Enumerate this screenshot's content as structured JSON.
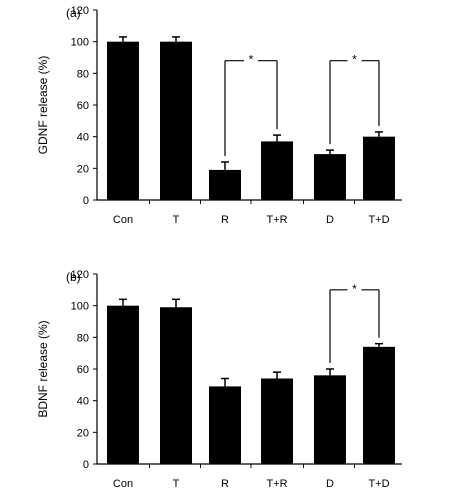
{
  "chart_data": [
    {
      "type": "bar",
      "panel_label": "(a)",
      "ylabel": "GDNF release  (%)",
      "ylim": [
        0,
        120
      ],
      "yticks": [
        0,
        20,
        40,
        60,
        80,
        100,
        120
      ],
      "categories": [
        "Con",
        "T",
        "R",
        "T+R",
        "D",
        "T+D"
      ],
      "values": [
        100,
        100,
        19,
        37,
        29,
        40
      ],
      "errors": [
        3,
        3,
        5,
        4,
        2.5,
        3
      ],
      "significance": [
        {
          "from": "R",
          "to": "T+R",
          "label": "*"
        },
        {
          "from": "D",
          "to": "T+D",
          "label": "*"
        }
      ]
    },
    {
      "type": "bar",
      "panel_label": "(b)",
      "ylabel": "BDNF release  (%)",
      "ylim": [
        0,
        120
      ],
      "yticks": [
        0,
        20,
        40,
        60,
        80,
        100,
        120
      ],
      "categories": [
        "Con",
        "T",
        "R",
        "T+R",
        "D",
        "T+D"
      ],
      "values": [
        100,
        99,
        49,
        54,
        56,
        74
      ],
      "errors": [
        4,
        5,
        5,
        4,
        4,
        2
      ],
      "significance": [
        {
          "from": "D",
          "to": "T+D",
          "label": "*"
        }
      ]
    }
  ]
}
